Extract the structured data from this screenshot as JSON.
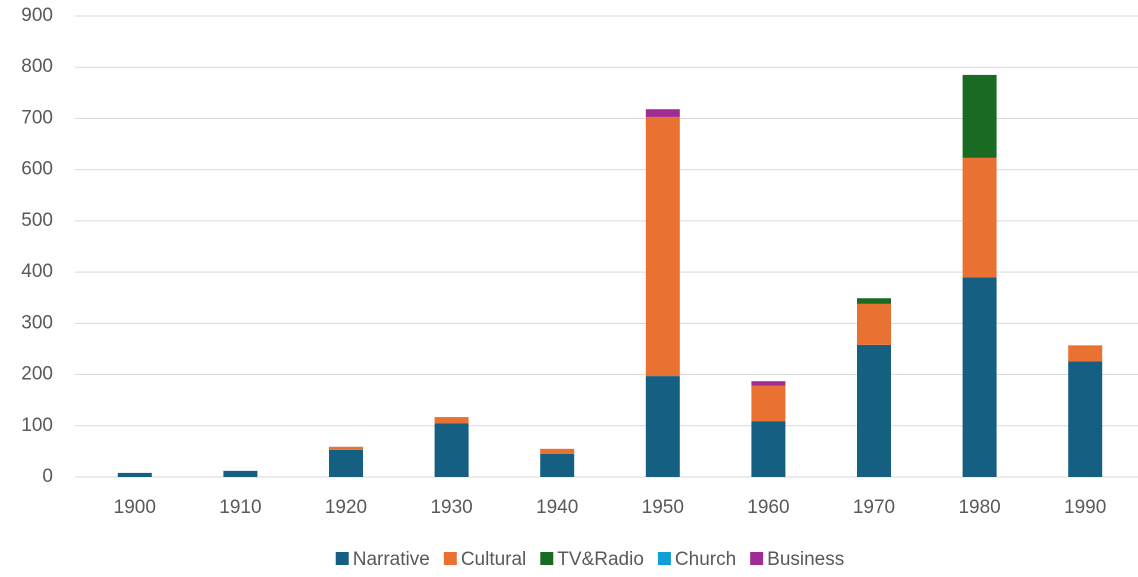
{
  "chart_data": {
    "type": "stacked_bar",
    "categories": [
      "1900",
      "1910",
      "1920",
      "1930",
      "1940",
      "1950",
      "1960",
      "1970",
      "1980",
      "1990"
    ],
    "series": [
      {
        "name": "Narrative",
        "color": "#156082",
        "values": [
          8,
          12,
          53,
          105,
          45,
          197,
          109,
          258,
          390,
          226
        ]
      },
      {
        "name": "Cultural",
        "color": "#e97132",
        "values": [
          0,
          0,
          6,
          12,
          10,
          506,
          69,
          80,
          233,
          31
        ]
      },
      {
        "name": "TV&Radio",
        "color": "#196b24",
        "values": [
          0,
          0,
          0,
          0,
          0,
          0,
          0,
          11,
          162,
          0
        ]
      },
      {
        "name": "Church",
        "color": "#0f9ed5",
        "values": [
          0,
          0,
          0,
          0,
          0,
          0,
          0,
          0,
          0,
          0
        ]
      },
      {
        "name": "Business",
        "color": "#a02b93",
        "values": [
          0,
          0,
          0,
          0,
          0,
          15,
          9,
          0,
          0,
          0
        ]
      }
    ],
    "ylim": [
      0,
      900
    ],
    "yticks": [
      0,
      100,
      200,
      300,
      400,
      500,
      600,
      700,
      800,
      900
    ],
    "grid": true,
    "legend": "bottom"
  }
}
